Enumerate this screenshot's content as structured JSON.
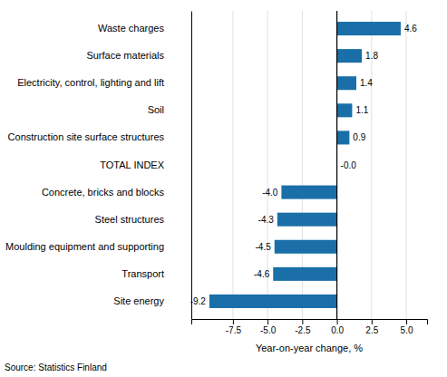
{
  "chart_data": {
    "type": "bar",
    "orientation": "horizontal",
    "categories": [
      "Site energy",
      "Transport",
      "Moulding equipment and supporting",
      "Steel structures",
      "Concrete, bricks and blocks",
      "TOTAL INDEX",
      "Construction site surface structures",
      "Soil",
      "Electricity, control, lighting and lift",
      "Surface materials",
      "Waste charges"
    ],
    "values": [
      -9.2,
      -4.6,
      -4.5,
      -4.3,
      -4.0,
      -0.0,
      0.9,
      1.1,
      1.4,
      1.8,
      4.6
    ],
    "value_labels": [
      "-9.2",
      "-4.6",
      "-4.5",
      "-4.3",
      "-4.0",
      "-0.0",
      "0.9",
      "1.1",
      "1.4",
      "1.8",
      "4.6"
    ],
    "data_labels": true,
    "color": "#1a6fa8",
    "xlabel": "Year-on-year change, %",
    "source": "Source: Statistics Finland",
    "xlim": [
      -10.5,
      6.5
    ],
    "xticks": [
      -7.5,
      {
        "value": -5.0,
        "label": "-5.0"
      },
      -2.5,
      {
        "value": 0.0,
        "label": "0.0"
      },
      2.5,
      {
        "value": 5.0,
        "label": "5.0"
      }
    ],
    "grid": true
  }
}
